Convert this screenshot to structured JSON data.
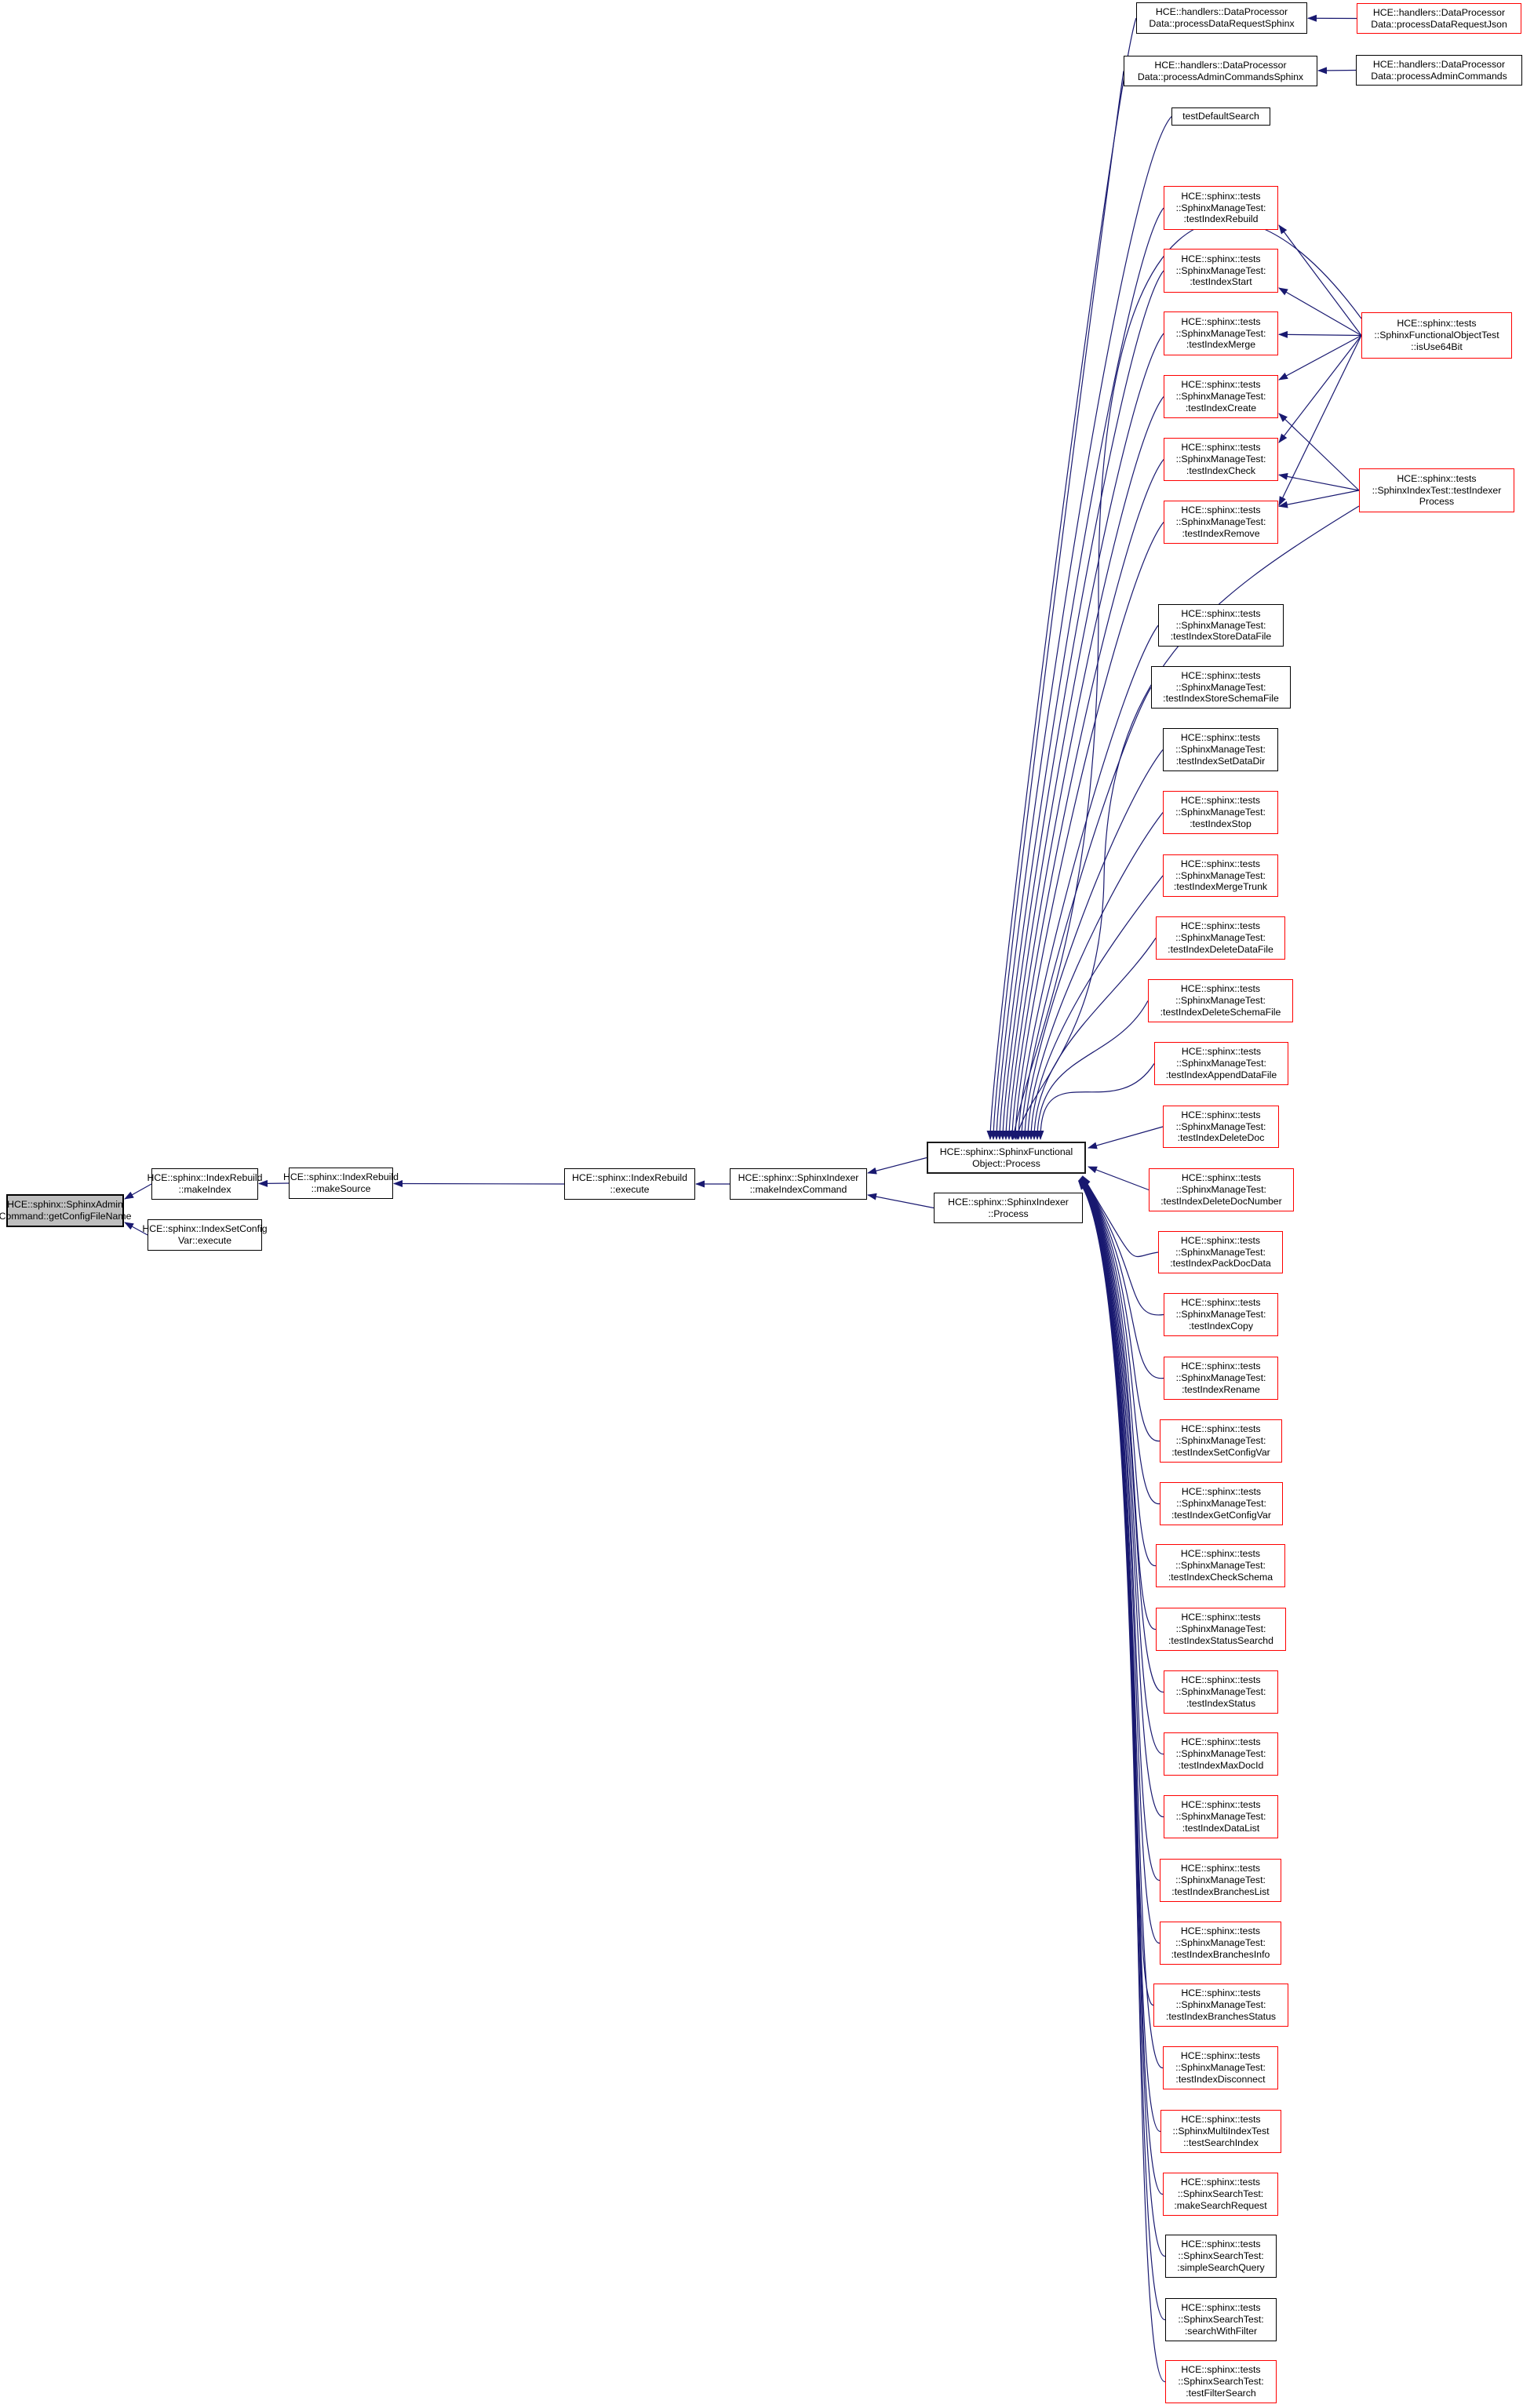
{
  "diagram": {
    "type": "caller-graph",
    "colors": {
      "edge": "#191970",
      "node_border": "#000000",
      "flagged_border": "#ff0000",
      "focal_fill": "#bfbfbf",
      "background": "#ffffff",
      "text": "#000000"
    },
    "nodes": [
      {
        "id": "getConfigFileName",
        "label": "HCE::sphinx::SphinxAdmin\nCommand::getConfigFileName",
        "style": "focal"
      },
      {
        "id": "makeIndex",
        "label": "HCE::sphinx::IndexRebuild\n::makeIndex",
        "style": "plain"
      },
      {
        "id": "indexSetConfigVarExecute",
        "label": "HCE::sphinx::IndexSetConfig\nVar::execute",
        "style": "plain"
      },
      {
        "id": "makeSource",
        "label": "HCE::sphinx::IndexRebuild\n::makeSource",
        "style": "plain"
      },
      {
        "id": "execute",
        "label": "HCE::sphinx::IndexRebuild\n::execute",
        "style": "plain"
      },
      {
        "id": "makeIndexCommand",
        "label": "HCE::sphinx::SphinxIndexer\n::makeIndexCommand",
        "style": "plain"
      },
      {
        "id": "hub",
        "label": "HCE::sphinx::SphinxFunctional\nObject::Process",
        "style": "hub"
      },
      {
        "id": "indexerProcess",
        "label": "HCE::sphinx::SphinxIndexer\n::Process",
        "style": "plain"
      },
      {
        "id": "processDataRequestSphinx",
        "label": "HCE::handlers::DataProcessor\nData::processDataRequestSphinx",
        "style": "plain"
      },
      {
        "id": "processDataRequestJson",
        "label": "HCE::handlers::DataProcessor\nData::processDataRequestJson",
        "style": "flagged"
      },
      {
        "id": "processAdminCommandsSphinx",
        "label": "HCE::handlers::DataProcessor\nData::processAdminCommandsSphinx",
        "style": "plain"
      },
      {
        "id": "processAdminCommands",
        "label": "HCE::handlers::DataProcessor\nData::processAdminCommands",
        "style": "plain"
      },
      {
        "id": "testDefaultSearch",
        "label": "testDefaultSearch",
        "style": "plain"
      },
      {
        "id": "testIndexRebuild",
        "label": "HCE::sphinx::tests\n::SphinxManageTest:\n:testIndexRebuild",
        "style": "flagged"
      },
      {
        "id": "testIndexStart",
        "label": "HCE::sphinx::tests\n::SphinxManageTest:\n:testIndexStart",
        "style": "flagged"
      },
      {
        "id": "testIndexMerge",
        "label": "HCE::sphinx::tests\n::SphinxManageTest:\n:testIndexMerge",
        "style": "flagged"
      },
      {
        "id": "isUse64Bit",
        "label": "HCE::sphinx::tests\n::SphinxFunctionalObjectTest\n::isUse64Bit",
        "style": "flagged"
      },
      {
        "id": "testIndexCreate",
        "label": "HCE::sphinx::tests\n::SphinxManageTest:\n:testIndexCreate",
        "style": "flagged"
      },
      {
        "id": "testIndexCheck",
        "label": "HCE::sphinx::tests\n::SphinxManageTest:\n:testIndexCheck",
        "style": "flagged"
      },
      {
        "id": "testIndexerProcess",
        "label": "HCE::sphinx::tests\n::SphinxIndexTest::testIndexer\nProcess",
        "style": "flagged"
      },
      {
        "id": "testIndexRemove",
        "label": "HCE::sphinx::tests\n::SphinxManageTest:\n:testIndexRemove",
        "style": "flagged"
      },
      {
        "id": "testIndexStoreDataFile",
        "label": "HCE::sphinx::tests\n::SphinxManageTest:\n:testIndexStoreDataFile",
        "style": "plain"
      },
      {
        "id": "testIndexStoreSchemaFile",
        "label": "HCE::sphinx::tests\n::SphinxManageTest:\n:testIndexStoreSchemaFile",
        "style": "plain"
      },
      {
        "id": "testIndexSetDataDir",
        "label": "HCE::sphinx::tests\n::SphinxManageTest:\n:testIndexSetDataDir",
        "style": "plain"
      },
      {
        "id": "testIndexStop",
        "label": "HCE::sphinx::tests\n::SphinxManageTest:\n:testIndexStop",
        "style": "flagged"
      },
      {
        "id": "testIndexMergeTrunk",
        "label": "HCE::sphinx::tests\n::SphinxManageTest:\n:testIndexMergeTrunk",
        "style": "flagged"
      },
      {
        "id": "testIndexDeleteDataFile",
        "label": "HCE::sphinx::tests\n::SphinxManageTest:\n:testIndexDeleteDataFile",
        "style": "flagged"
      },
      {
        "id": "testIndexDeleteSchemaFile",
        "label": "HCE::sphinx::tests\n::SphinxManageTest:\n:testIndexDeleteSchemaFile",
        "style": "flagged"
      },
      {
        "id": "testIndexAppendDataFile",
        "label": "HCE::sphinx::tests\n::SphinxManageTest:\n:testIndexAppendDataFile",
        "style": "flagged"
      },
      {
        "id": "testIndexDeleteDoc",
        "label": "HCE::sphinx::tests\n::SphinxManageTest:\n:testIndexDeleteDoc",
        "style": "flagged"
      },
      {
        "id": "testIndexDeleteDocNumber",
        "label": "HCE::sphinx::tests\n::SphinxManageTest:\n:testIndexDeleteDocNumber",
        "style": "flagged"
      },
      {
        "id": "testIndexPackDocData",
        "label": "HCE::sphinx::tests\n::SphinxManageTest:\n:testIndexPackDocData",
        "style": "flagged"
      },
      {
        "id": "testIndexCopy",
        "label": "HCE::sphinx::tests\n::SphinxManageTest:\n:testIndexCopy",
        "style": "flagged"
      },
      {
        "id": "testIndexRename",
        "label": "HCE::sphinx::tests\n::SphinxManageTest:\n:testIndexRename",
        "style": "flagged"
      },
      {
        "id": "testIndexSetConfigVar",
        "label": "HCE::sphinx::tests\n::SphinxManageTest:\n:testIndexSetConfigVar",
        "style": "flagged"
      },
      {
        "id": "testIndexGetConfigVar",
        "label": "HCE::sphinx::tests\n::SphinxManageTest:\n:testIndexGetConfigVar",
        "style": "flagged"
      },
      {
        "id": "testIndexCheckSchema",
        "label": "HCE::sphinx::tests\n::SphinxManageTest:\n:testIndexCheckSchema",
        "style": "flagged"
      },
      {
        "id": "testIndexStatusSearchd",
        "label": "HCE::sphinx::tests\n::SphinxManageTest:\n:testIndexStatusSearchd",
        "style": "flagged"
      },
      {
        "id": "testIndexStatus",
        "label": "HCE::sphinx::tests\n::SphinxManageTest:\n:testIndexStatus",
        "style": "flagged"
      },
      {
        "id": "testIndexMaxDocId",
        "label": "HCE::sphinx::tests\n::SphinxManageTest:\n:testIndexMaxDocId",
        "style": "flagged"
      },
      {
        "id": "testIndexDataList",
        "label": "HCE::sphinx::tests\n::SphinxManageTest:\n:testIndexDataList",
        "style": "flagged"
      },
      {
        "id": "testIndexBranchesList",
        "label": "HCE::sphinx::tests\n::SphinxManageTest:\n:testIndexBranchesList",
        "style": "flagged"
      },
      {
        "id": "testIndexBranchesInfo",
        "label": "HCE::sphinx::tests\n::SphinxManageTest:\n:testIndexBranchesInfo",
        "style": "flagged"
      },
      {
        "id": "testIndexBranchesStatus",
        "label": "HCE::sphinx::tests\n::SphinxManageTest:\n:testIndexBranchesStatus",
        "style": "flagged"
      },
      {
        "id": "testIndexDisconnect",
        "label": "HCE::sphinx::tests\n::SphinxManageTest:\n:testIndexDisconnect",
        "style": "flagged"
      },
      {
        "id": "testSearchIndex",
        "label": "HCE::sphinx::tests\n::SphinxMultiIndexTest\n::testSearchIndex",
        "style": "flagged"
      },
      {
        "id": "makeSearchRequest",
        "label": "HCE::sphinx::tests\n::SphinxSearchTest:\n:makeSearchRequest",
        "style": "flagged"
      },
      {
        "id": "simpleSearchQuery",
        "label": "HCE::sphinx::tests\n::SphinxSearchTest:\n:simpleSearchQuery",
        "style": "plain"
      },
      {
        "id": "searchWithFilter",
        "label": "HCE::sphinx::tests\n::SphinxSearchTest:\n:searchWithFilter",
        "style": "plain"
      },
      {
        "id": "testFilterSearch",
        "label": "HCE::sphinx::tests\n::SphinxSearchTest:\n:testFilterSearch",
        "style": "flagged"
      }
    ],
    "edges": [
      {
        "from": "makeIndex",
        "to": "getConfigFileName"
      },
      {
        "from": "indexSetConfigVarExecute",
        "to": "getConfigFileName"
      },
      {
        "from": "makeSource",
        "to": "makeIndex"
      },
      {
        "from": "execute",
        "to": "makeSource"
      },
      {
        "from": "makeIndexCommand",
        "to": "execute"
      },
      {
        "from": "hub",
        "to": "makeIndexCommand"
      },
      {
        "from": "indexerProcess",
        "to": "makeIndexCommand"
      },
      {
        "from": "processDataRequestJson",
        "to": "processDataRequestSphinx"
      },
      {
        "from": "processAdminCommands",
        "to": "processAdminCommandsSphinx"
      },
      {
        "from": "isUse64Bit",
        "to": "testIndexRebuild"
      },
      {
        "from": "isUse64Bit",
        "to": "testIndexStart"
      },
      {
        "from": "isUse64Bit",
        "to": "testIndexMerge"
      },
      {
        "from": "isUse64Bit",
        "to": "testIndexCreate"
      },
      {
        "from": "isUse64Bit",
        "to": "testIndexCheck"
      },
      {
        "from": "isUse64Bit",
        "to": "testIndexRemove"
      },
      {
        "from": "testIndexerProcess",
        "to": "testIndexCreate"
      },
      {
        "from": "testIndexerProcess",
        "to": "testIndexCheck"
      },
      {
        "from": "testIndexerProcess",
        "to": "testIndexRemove"
      },
      {
        "from": "processDataRequestSphinx",
        "to": "hub"
      },
      {
        "from": "processAdminCommandsSphinx",
        "to": "hub"
      },
      {
        "from": "testDefaultSearch",
        "to": "hub"
      },
      {
        "from": "testIndexRebuild",
        "to": "hub"
      },
      {
        "from": "testIndexStart",
        "to": "hub"
      },
      {
        "from": "testIndexMerge",
        "to": "hub"
      },
      {
        "from": "isUse64Bit",
        "to": "hub"
      },
      {
        "from": "testIndexCreate",
        "to": "hub"
      },
      {
        "from": "testIndexCheck",
        "to": "hub"
      },
      {
        "from": "testIndexRemove",
        "to": "hub"
      },
      {
        "from": "testIndexerProcess",
        "to": "hub"
      },
      {
        "from": "testIndexStoreDataFile",
        "to": "hub"
      },
      {
        "from": "testIndexStoreSchemaFile",
        "to": "hub"
      },
      {
        "from": "testIndexSetDataDir",
        "to": "hub"
      },
      {
        "from": "testIndexStop",
        "to": "hub"
      },
      {
        "from": "testIndexMergeTrunk",
        "to": "hub"
      },
      {
        "from": "testIndexDeleteDataFile",
        "to": "hub"
      },
      {
        "from": "testIndexDeleteSchemaFile",
        "to": "hub"
      },
      {
        "from": "testIndexAppendDataFile",
        "to": "hub"
      },
      {
        "from": "testIndexDeleteDoc",
        "to": "hub"
      },
      {
        "from": "testIndexDeleteDocNumber",
        "to": "hub"
      },
      {
        "from": "testIndexPackDocData",
        "to": "hub"
      },
      {
        "from": "testIndexCopy",
        "to": "hub"
      },
      {
        "from": "testIndexRename",
        "to": "hub"
      },
      {
        "from": "testIndexSetConfigVar",
        "to": "hub"
      },
      {
        "from": "testIndexGetConfigVar",
        "to": "hub"
      },
      {
        "from": "testIndexCheckSchema",
        "to": "hub"
      },
      {
        "from": "testIndexStatusSearchd",
        "to": "hub"
      },
      {
        "from": "testIndexStatus",
        "to": "hub"
      },
      {
        "from": "testIndexMaxDocId",
        "to": "hub"
      },
      {
        "from": "testIndexDataList",
        "to": "hub"
      },
      {
        "from": "testIndexBranchesList",
        "to": "hub"
      },
      {
        "from": "testIndexBranchesInfo",
        "to": "hub"
      },
      {
        "from": "testIndexBranchesStatus",
        "to": "hub"
      },
      {
        "from": "testIndexDisconnect",
        "to": "hub"
      },
      {
        "from": "testSearchIndex",
        "to": "hub"
      },
      {
        "from": "makeSearchRequest",
        "to": "hub"
      },
      {
        "from": "simpleSearchQuery",
        "to": "hub"
      },
      {
        "from": "searchWithFilter",
        "to": "hub"
      },
      {
        "from": "testFilterSearch",
        "to": "hub"
      }
    ]
  }
}
